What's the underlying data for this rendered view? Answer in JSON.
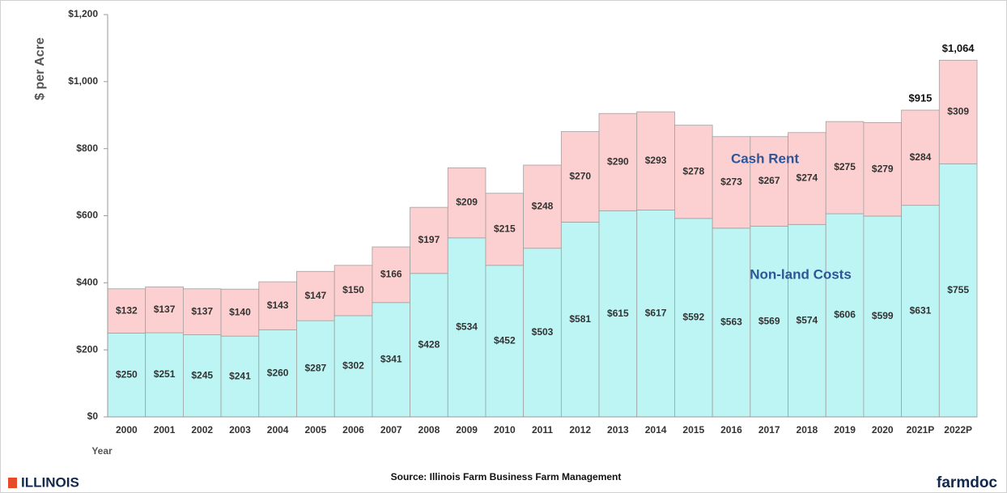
{
  "chart_data": {
    "type": "stacked_bar",
    "ylabel": "$ per Acre",
    "xlabel": "Year",
    "source": "Source:  Illinois  Farm Business Farm Management",
    "logo_left": "ILLINOIS",
    "logo_right": "farmdoc",
    "categories": [
      "2000",
      "2001",
      "2002",
      "2003",
      "2004",
      "2005",
      "2006",
      "2007",
      "2008",
      "2009",
      "2010",
      "2011",
      "2012",
      "2013",
      "2014",
      "2015",
      "2016",
      "2017",
      "2018",
      "2019",
      "2020",
      "2021P",
      "2022P"
    ],
    "series": [
      {
        "name": "Non-land Costs",
        "color": "#bdf4f4",
        "values": [
          250,
          251,
          245,
          241,
          260,
          287,
          302,
          341,
          428,
          534,
          452,
          503,
          581,
          615,
          617,
          592,
          563,
          569,
          574,
          606,
          599,
          631,
          755
        ],
        "value_labels": [
          "$250",
          "$251",
          "$245",
          "$241",
          "$260",
          "$287",
          "$302",
          "$341",
          "$428",
          "$534",
          "$452",
          "$503",
          "$581",
          "$615",
          "$617",
          "$592",
          "$563",
          "$569",
          "$574",
          "$606",
          "$599",
          "$631",
          "$755"
        ]
      },
      {
        "name": "Cash Rent",
        "color": "#fcd0d0",
        "values": [
          132,
          137,
          137,
          140,
          143,
          147,
          150,
          166,
          197,
          209,
          215,
          248,
          270,
          290,
          293,
          278,
          273,
          267,
          274,
          275,
          279,
          284,
          309
        ],
        "value_labels": [
          "$132",
          "$137",
          "$137",
          "$140",
          "$143",
          "$147",
          "$150",
          "$166",
          "$197",
          "$209",
          "$215",
          "$248",
          "$270",
          "$290",
          "$293",
          "$278",
          "$273",
          "$267",
          "$274",
          "$275",
          "$279",
          "$284",
          "$309"
        ]
      }
    ],
    "annotations": [
      "$915",
      "$1,064"
    ],
    "ylim": [
      0,
      1200
    ],
    "yticks": [
      {
        "value": 0,
        "label": "$0"
      },
      {
        "value": 200,
        "label": "$200"
      },
      {
        "value": 400,
        "label": "$400"
      },
      {
        "value": 600,
        "label": "$600"
      },
      {
        "value": 800,
        "label": "$800"
      },
      {
        "value": 1000,
        "label": "$1,000"
      },
      {
        "value": 1200,
        "label": "$1,200"
      }
    ]
  }
}
